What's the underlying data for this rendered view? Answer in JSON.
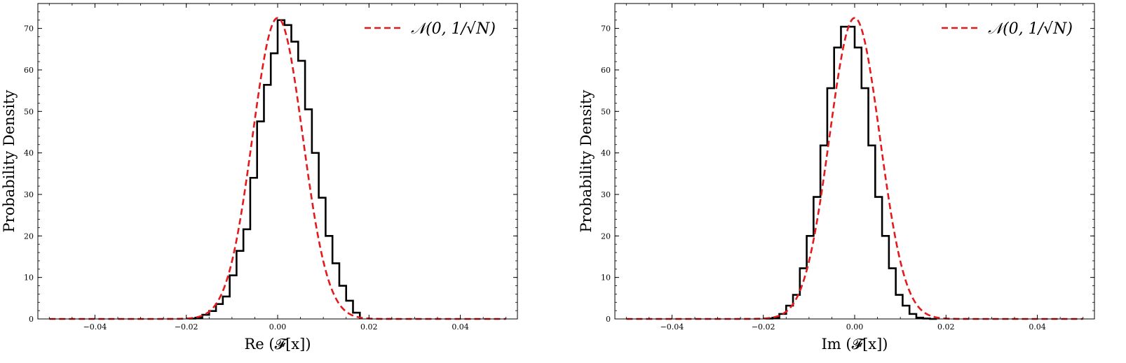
{
  "legend_label": "𝒩(0, 1/√N)",
  "colors": {
    "histogram": "#000000",
    "fit": "#e31a1c"
  },
  "chart_data": [
    {
      "type": "histogram",
      "xlabel": "Re (𝓕[x])",
      "ylabel": "Probability Density",
      "xlim": [
        -0.0525,
        0.0525
      ],
      "ylim": [
        0,
        76
      ],
      "xticks": [
        -0.04,
        -0.02,
        0.0,
        0.02,
        0.04
      ],
      "xtick_labels": [
        "−0.04",
        "−0.02",
        "0.00",
        "0.02",
        "0.04"
      ],
      "yticks": [
        0,
        10,
        20,
        30,
        40,
        50,
        60,
        70
      ],
      "ytick_labels": [
        "0",
        "10",
        "20",
        "30",
        "40",
        "50",
        "60",
        "70"
      ],
      "legend_position": "top-right",
      "grid": false,
      "series": [
        {
          "name": "𝒩(0, 1/√N)",
          "kind": "line-dashed",
          "sigma": 0.0055,
          "x_range": [
            -0.05,
            0.05
          ]
        },
        {
          "kind": "step",
          "bin_edges": [
            -0.0195,
            -0.018,
            -0.0165,
            -0.015,
            -0.0135,
            -0.012,
            -0.0105,
            -0.009,
            -0.0075,
            -0.006,
            -0.0045,
            -0.003,
            -0.0015,
            0.0,
            0.0015,
            0.003,
            0.0045,
            0.006,
            0.0075,
            0.009,
            0.0105,
            0.012,
            0.0135,
            0.015,
            0.0165,
            0.018
          ],
          "values": [
            0.1,
            0.3,
            1.0,
            1.9,
            3.6,
            5.4,
            10.5,
            16.4,
            21.6,
            34.0,
            47.6,
            56.4,
            64.0,
            72.0,
            70.8,
            66.8,
            62.2,
            50.5,
            40.0,
            29.2,
            20.0,
            13.4,
            8.0,
            4.4,
            1.5
          ]
        }
      ]
    },
    {
      "type": "histogram",
      "xlabel": "Im (𝓕[x])",
      "ylabel": "Probability Density",
      "xlim": [
        -0.0525,
        0.0525
      ],
      "ylim": [
        0,
        76
      ],
      "xticks": [
        -0.04,
        -0.02,
        0.0,
        0.02,
        0.04
      ],
      "xtick_labels": [
        "−0.04",
        "−0.02",
        "0.00",
        "0.02",
        "0.04"
      ],
      "yticks": [
        0,
        10,
        20,
        30,
        40,
        50,
        60,
        70
      ],
      "ytick_labels": [
        "0",
        "10",
        "20",
        "30",
        "40",
        "50",
        "60",
        "70"
      ],
      "legend_position": "top-right",
      "grid": false,
      "series": [
        {
          "name": "𝒩(0, 1/√N)",
          "kind": "line-dashed",
          "sigma": 0.0055,
          "x_range": [
            -0.05,
            0.05
          ]
        },
        {
          "kind": "step",
          "bin_edges": [
            -0.0195,
            -0.018,
            -0.0165,
            -0.015,
            -0.0135,
            -0.012,
            -0.0105,
            -0.009,
            -0.0075,
            -0.006,
            -0.0045,
            -0.003,
            -0.0015,
            0.0,
            0.0015,
            0.003,
            0.0045,
            0.006,
            0.0075,
            0.009,
            0.0105,
            0.012,
            0.0135,
            0.015,
            0.0165,
            0.018
          ],
          "values": [
            0.1,
            0.3,
            1.2,
            3.2,
            5.8,
            12.2,
            20.0,
            29.4,
            41.8,
            55.6,
            65.4,
            70.4,
            70.4,
            65.4,
            55.6,
            41.8,
            29.4,
            20.0,
            12.2,
            5.8,
            3.2,
            1.2,
            0.3,
            0.1,
            0.0
          ]
        }
      ]
    }
  ]
}
